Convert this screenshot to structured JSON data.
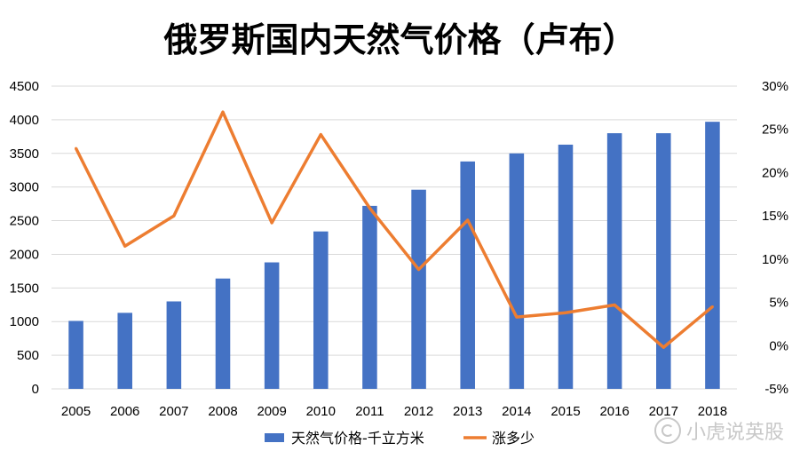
{
  "title": "俄罗斯国内天然气价格（卢布）",
  "watermark": "小虎说英股",
  "chart_data": {
    "type": "bar",
    "categories": [
      "2005",
      "2006",
      "2007",
      "2008",
      "2009",
      "2010",
      "2011",
      "2012",
      "2013",
      "2014",
      "2015",
      "2016",
      "2017",
      "2018"
    ],
    "series": [
      {
        "name": "天然气价格-千立方米",
        "type": "bar",
        "axis": "left",
        "color": "#4472C4",
        "values": [
          1010,
          1130,
          1300,
          1640,
          1880,
          2340,
          2720,
          2960,
          3380,
          3500,
          3630,
          3800,
          3800,
          3970
        ]
      },
      {
        "name": "涨多少",
        "type": "line",
        "axis": "right",
        "color": "#ED7D31",
        "values": [
          22.8,
          11.5,
          15.0,
          27.0,
          14.2,
          24.4,
          15.9,
          8.8,
          14.5,
          3.3,
          3.8,
          4.7,
          -0.2,
          4.5
        ]
      }
    ],
    "y_left": {
      "min": 0,
      "max": 4500,
      "ticks": [
        "0",
        "500",
        "1000",
        "1500",
        "2000",
        "2500",
        "3000",
        "3500",
        "4000",
        "4500"
      ]
    },
    "y_right": {
      "min": -5,
      "max": 30,
      "ticks": [
        "-5%",
        "0%",
        "5%",
        "10%",
        "15%",
        "20%",
        "25%",
        "30%"
      ]
    },
    "grid": true,
    "legend_position": "bottom"
  }
}
